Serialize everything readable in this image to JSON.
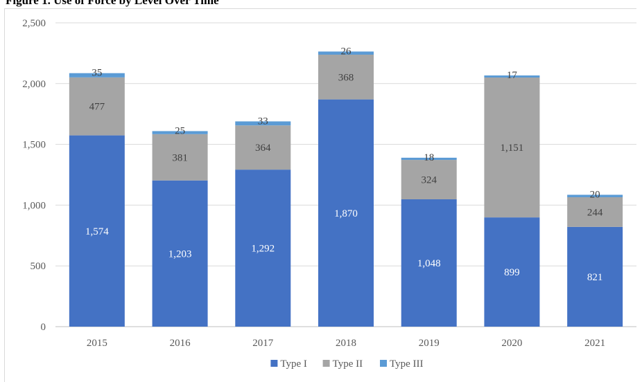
{
  "figure": {
    "title": "Figure 1. Use of Force by Level Over Time"
  },
  "chart_data": {
    "type": "bar",
    "stacked": true,
    "categories": [
      "2015",
      "2016",
      "2017",
      "2018",
      "2019",
      "2020",
      "2021"
    ],
    "series": [
      {
        "name": "Type I",
        "color": "#4472c4",
        "label_color": "#ffffff",
        "values": [
          1574,
          1203,
          1292,
          1870,
          1048,
          899,
          821
        ]
      },
      {
        "name": "Type II",
        "color": "#a5a5a5",
        "label_color": "#404040",
        "values": [
          477,
          381,
          364,
          368,
          324,
          1151,
          244
        ]
      },
      {
        "name": "Type III",
        "color": "#5b9bd5",
        "label_color": "#404040",
        "values": [
          35,
          25,
          33,
          26,
          18,
          17,
          20
        ]
      }
    ],
    "ylim": [
      0,
      2500
    ],
    "yticks": [
      0,
      500,
      1000,
      1500,
      2000,
      2500
    ],
    "ytick_labels": [
      "0",
      "500",
      "1,000",
      "1,500",
      "2,000",
      "2,500"
    ],
    "grid": true,
    "legend_position": "bottom",
    "xlabel": "",
    "ylabel": ""
  }
}
